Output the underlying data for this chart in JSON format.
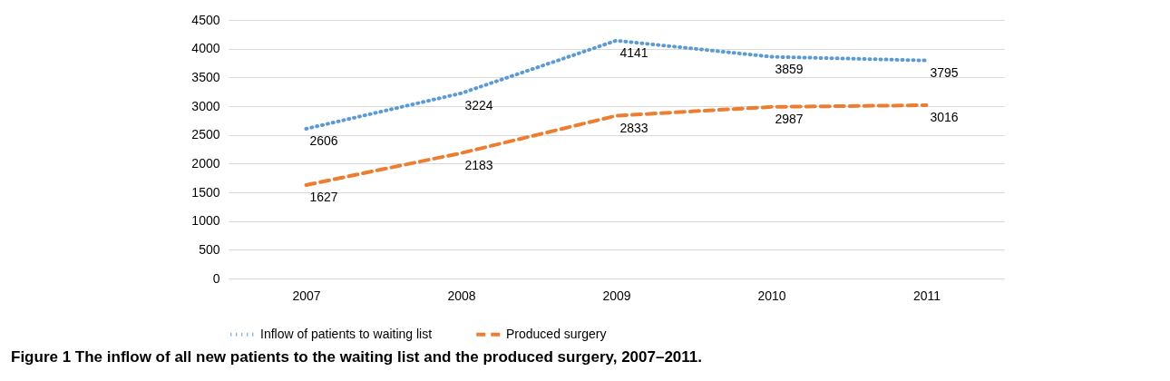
{
  "chart_data": {
    "type": "line",
    "categories": [
      "2007",
      "2008",
      "2009",
      "2010",
      "2011"
    ],
    "series": [
      {
        "name": "Inflow of patients to waiting list",
        "color": "#5b9bd5",
        "line_style": "dotted",
        "values": [
          2606,
          3224,
          4141,
          3859,
          3795
        ]
      },
      {
        "name": "Produced surgery",
        "color": "#ed7d31",
        "line_style": "dashed",
        "values": [
          1627,
          2183,
          2833,
          2987,
          3016
        ]
      }
    ],
    "ylim": [
      0,
      4500
    ],
    "yticks": [
      0,
      500,
      1000,
      1500,
      2000,
      2500,
      3000,
      3500,
      4000,
      4500
    ],
    "grid": "y",
    "legend": "bottom",
    "data_labels": true,
    "marker": "none",
    "annotations": [
      "Figure 1 The inflow of all new patients to the waiting list and the produced surgery, 2007–2011."
    ]
  }
}
